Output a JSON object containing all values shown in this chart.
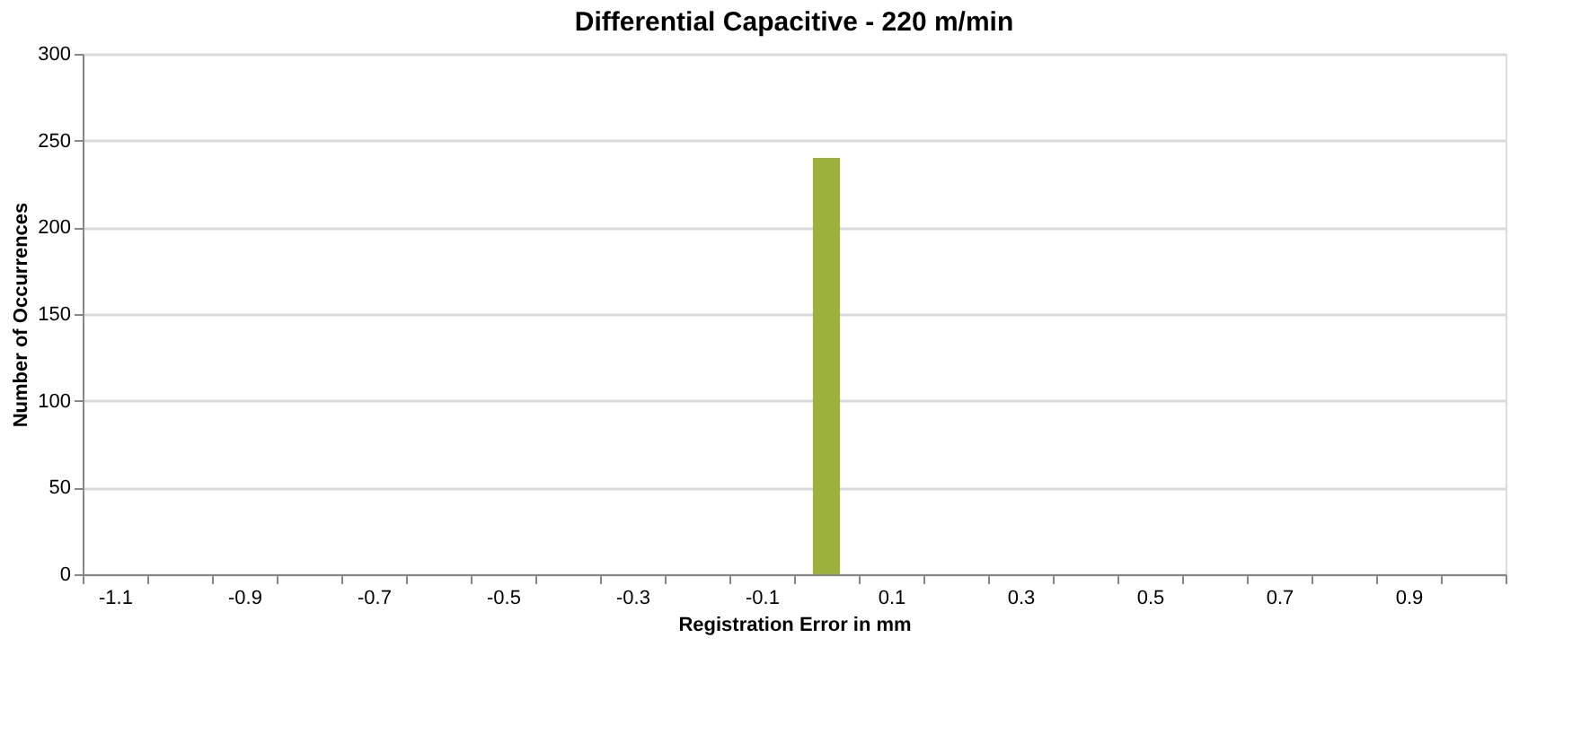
{
  "chart_data": {
    "type": "bar",
    "title": "Differential Capacitive - 220 m/min",
    "xlabel": "Registration Error in mm",
    "ylabel": "Number of Occurrences",
    "categories": [
      "-1.1",
      null,
      "-0.9",
      null,
      "-0.7",
      null,
      "-0.5",
      null,
      "-0.3",
      null,
      "-0.1",
      null,
      "0.1",
      null,
      "0.3",
      null,
      "0.5",
      null,
      "0.7",
      null,
      "0.9",
      null
    ],
    "values": [
      0,
      0,
      0,
      0,
      0,
      0,
      0,
      0,
      0,
      0,
      0,
      240,
      0,
      0,
      0,
      0,
      0,
      0,
      0,
      0,
      0,
      0
    ],
    "color": "#9bb13c",
    "ylim": [
      0,
      300
    ],
    "yticks": [
      0,
      50,
      100,
      150,
      200,
      250,
      300
    ],
    "grid": "y"
  }
}
